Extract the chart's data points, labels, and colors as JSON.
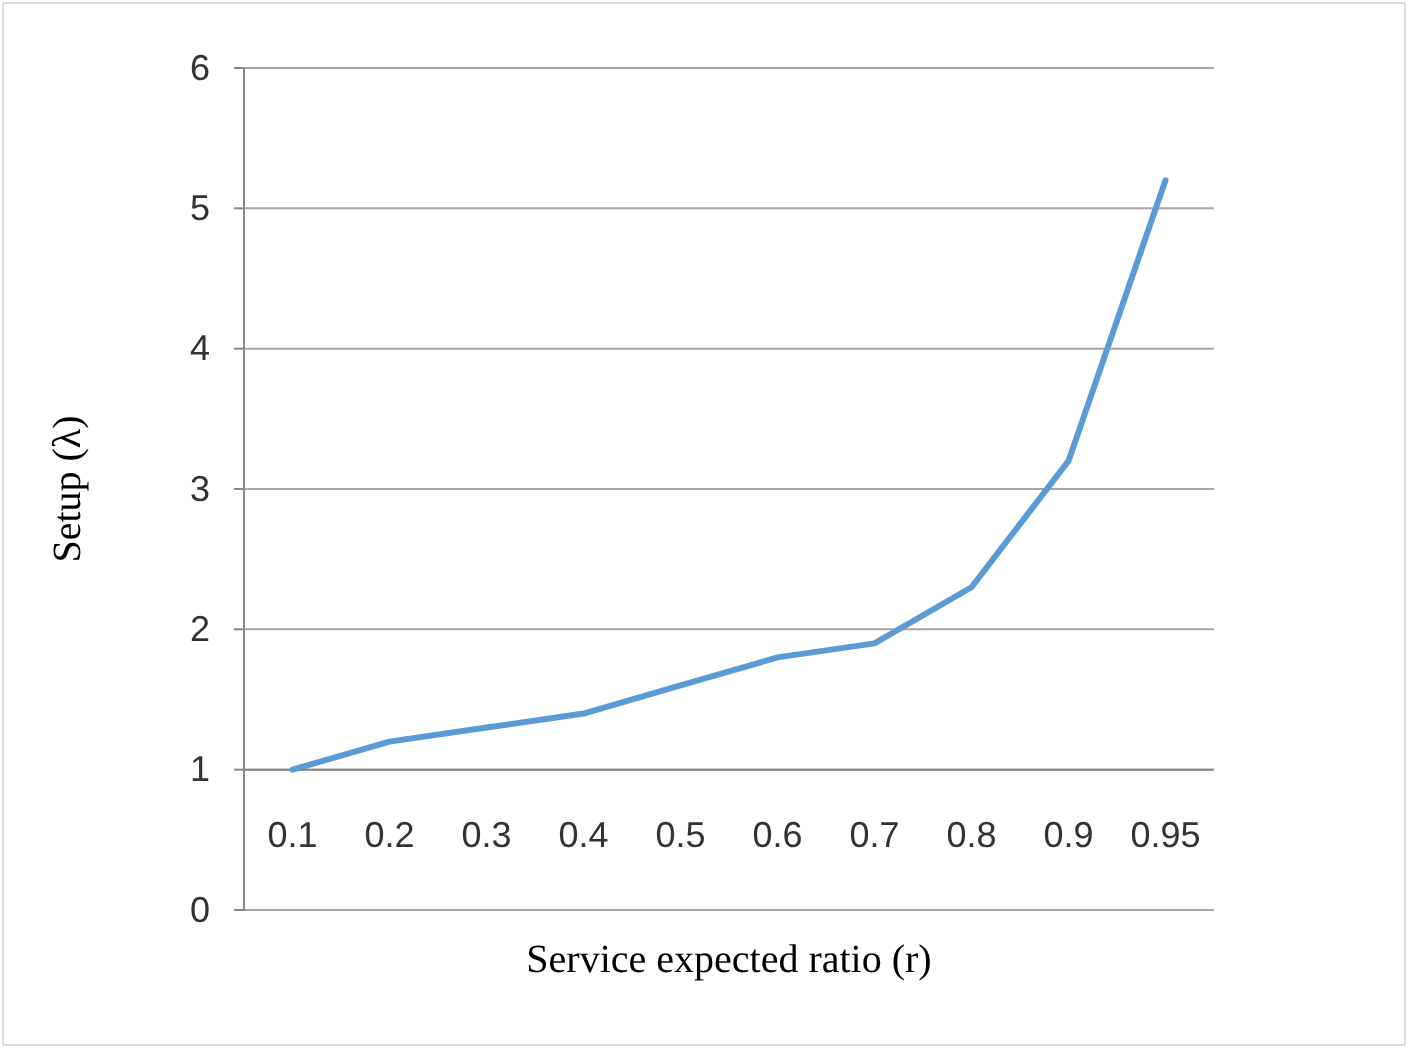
{
  "chart_data": {
    "type": "line",
    "xlabel": "Service expected ratio (r)",
    "ylabel": "Setup (λ)",
    "categories": [
      "0.1",
      "0.2",
      "0.3",
      "0.4",
      "0.5",
      "0.6",
      "0.7",
      "0.8",
      "0.9",
      "0.95"
    ],
    "series": [
      {
        "color": "#5b9bd5",
        "values": [
          1.0,
          1.2,
          1.3,
          1.4,
          1.6,
          1.8,
          1.9,
          2.3,
          3.2,
          5.2
        ]
      }
    ],
    "ylim": [
      0,
      6
    ],
    "yticks": [
      0,
      1,
      2,
      3,
      4,
      5,
      6
    ],
    "grid": "y",
    "marker": "none",
    "line_style": "solid"
  }
}
